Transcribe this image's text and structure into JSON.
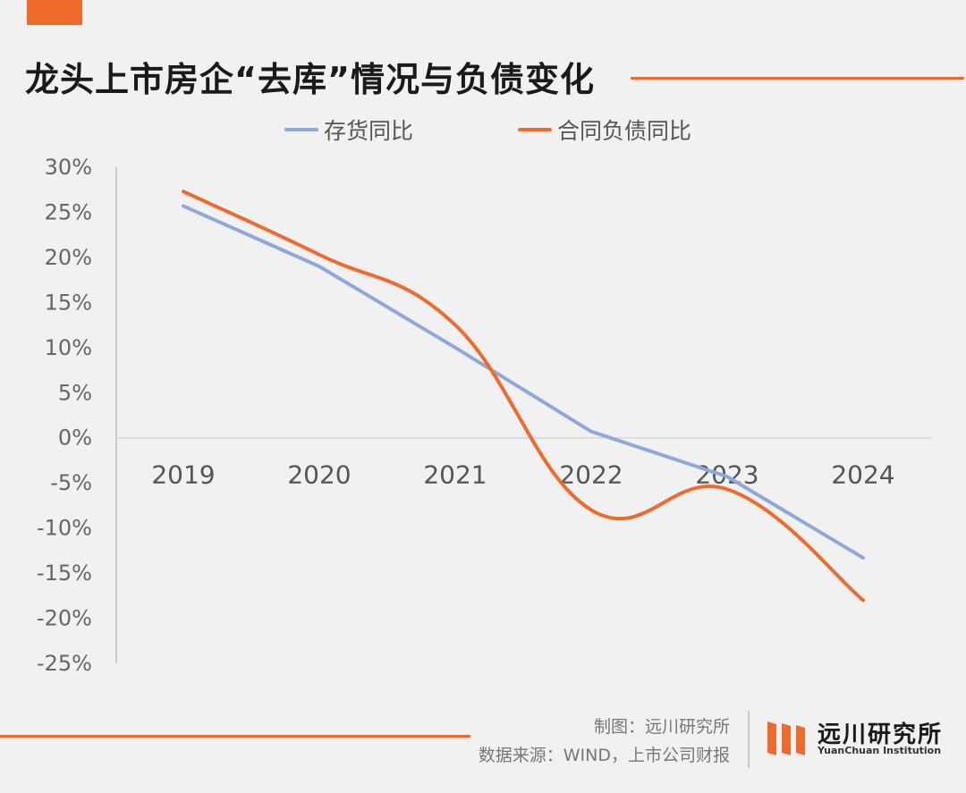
{
  "header": {
    "title": "龙头上市房企“去库”情况与负债变化"
  },
  "colors": {
    "accent": "#ee6b2b",
    "series_inventory": "#8fa8dc",
    "series_contract": "#ee6b2b",
    "axis": "#bdbdbd"
  },
  "chart_data": {
    "type": "line",
    "title": "龙头上市房企“去库”情况与负债变化",
    "categories": [
      "2019",
      "2020",
      "2021",
      "2022",
      "2023",
      "2024"
    ],
    "series": [
      {
        "name": "存货同比",
        "smooth": false,
        "values": [
          25.7,
          19.0,
          10.0,
          0.7,
          -4.3,
          -13.3
        ]
      },
      {
        "name": "合同负债同比",
        "smooth": true,
        "values": [
          27.3,
          20.3,
          12.5,
          -8.0,
          -5.7,
          -18.0
        ]
      }
    ],
    "y_ticks": [
      "30%",
      "25%",
      "20%",
      "15%",
      "10%",
      "5%",
      "0%",
      "-5%",
      "-10%",
      "-15%",
      "-20%",
      "-25%"
    ],
    "ylim": [
      -25,
      30
    ],
    "y_step": 5,
    "xlabel": "",
    "ylabel": "",
    "grid": false,
    "legend_position": "top-center"
  },
  "footer": {
    "credit": "制图：远川研究所",
    "source": "数据来源：WIND，上市公司财报",
    "logo_name": "远川研究所",
    "logo_subtitle": "YuanChuan Institution"
  }
}
